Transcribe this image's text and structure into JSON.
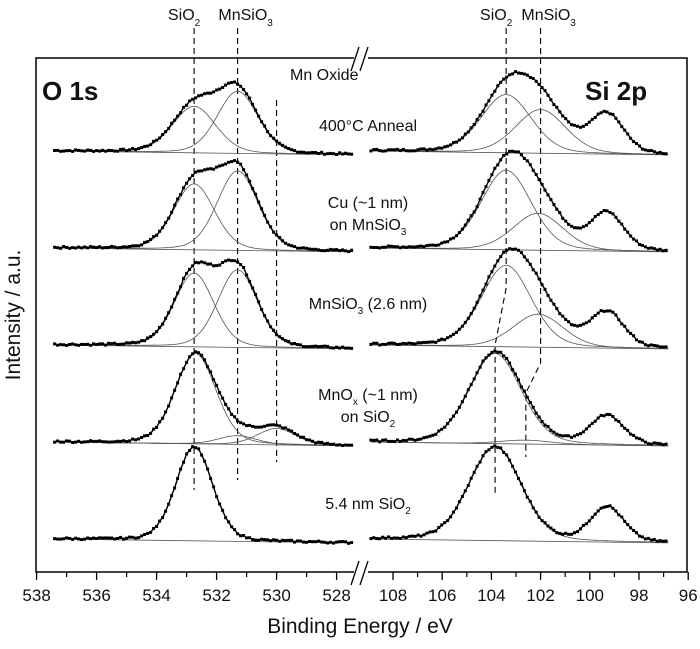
{
  "chart_data": {
    "type": "line",
    "xlabel": "Binding Energy / eV",
    "ylabel": "Intensity / a.u.",
    "ylim": [
      0,
      5.3
    ],
    "panels": [
      {
        "name": "O 1s",
        "xlim": [
          538,
          527.1
        ],
        "ticks": [
          "538",
          "536",
          "534",
          "532",
          "530",
          "528"
        ],
        "tick_values": [
          538,
          536,
          534,
          532,
          530,
          528
        ]
      },
      {
        "name": "Si 2p",
        "xlim": [
          109.3,
          96
        ],
        "ticks": [
          "108",
          "106",
          "104",
          "102",
          "100",
          "98",
          "96"
        ],
        "tick_values": [
          108,
          106,
          104,
          102,
          100,
          98,
          96
        ]
      }
    ],
    "top_labels": [
      {
        "text": "SiO",
        "sub": "2",
        "panel": 0,
        "energy": 532.75
      },
      {
        "text": "MnSiO",
        "sub": "3",
        "panel": 0,
        "energy": 531.3
      },
      {
        "text": "SiO",
        "sub": "2",
        "panel": 1,
        "energy": 103.4
      },
      {
        "text": "MnSiO",
        "sub": "3",
        "panel": 1,
        "energy": 102.0
      }
    ],
    "mn_oxide_label": "Mn Oxide",
    "reference_lines": {
      "O1s": [
        532.75,
        531.3,
        530.0
      ],
      "Si2p_upper": [
        103.4,
        102.0
      ],
      "Si2p_lower": [
        103.85,
        102.6
      ]
    },
    "samples": [
      {
        "label_lines": [
          [
            {
              "text": "400°C Anneal"
            }
          ]
        ],
        "offset": 4.3,
        "O1s": [
          {
            "species": "SiO2",
            "center": 532.75,
            "amp": 0.48,
            "fwhm": 1.7
          },
          {
            "species": "MnSiO3",
            "center": 531.3,
            "amp": 0.64,
            "fwhm": 1.6
          }
        ],
        "Si2p": [
          {
            "species": "SiO2",
            "center": 103.4,
            "amp": 0.6,
            "fwhm": 2.4
          },
          {
            "species": "MnSiO3",
            "center": 102.0,
            "amp": 0.45,
            "fwhm": 2.4
          },
          {
            "species": "Si",
            "center": 99.3,
            "amp": 0.4,
            "fwhm": 1.6
          }
        ]
      },
      {
        "label_lines": [
          [
            {
              "text": "Cu (~1  nm)"
            }
          ],
          [
            {
              "text": "on MnSiO"
            },
            {
              "sub": "3"
            }
          ]
        ],
        "offset": 3.3,
        "O1s": [
          {
            "species": "SiO2",
            "center": 532.75,
            "amp": 0.68,
            "fwhm": 1.6
          },
          {
            "species": "MnSiO3",
            "center": 531.3,
            "amp": 0.82,
            "fwhm": 1.6
          }
        ],
        "Si2p": [
          {
            "species": "SiO2",
            "center": 103.4,
            "amp": 0.82,
            "fwhm": 2.4
          },
          {
            "species": "MnSiO3",
            "center": 102.1,
            "amp": 0.38,
            "fwhm": 2.4
          },
          {
            "species": "Si",
            "center": 99.3,
            "amp": 0.38,
            "fwhm": 1.6
          }
        ]
      },
      {
        "label_lines": [
          [
            {
              "text": "MnSiO"
            },
            {
              "sub": "3"
            },
            {
              "text": " (2.6 nm)"
            }
          ]
        ],
        "offset": 2.3,
        "O1s": [
          {
            "species": "SiO2",
            "center": 532.75,
            "amp": 0.76,
            "fwhm": 1.55
          },
          {
            "species": "MnSiO3",
            "center": 531.3,
            "amp": 0.8,
            "fwhm": 1.55
          }
        ],
        "Si2p": [
          {
            "species": "SiO2",
            "center": 103.4,
            "amp": 0.84,
            "fwhm": 2.4
          },
          {
            "species": "MnSiO3",
            "center": 102.1,
            "amp": 0.34,
            "fwhm": 2.4
          },
          {
            "species": "Si",
            "center": 99.3,
            "amp": 0.36,
            "fwhm": 1.6
          }
        ]
      },
      {
        "label_lines": [
          [
            {
              "text": "MnO"
            },
            {
              "sub": "x"
            },
            {
              "text": " (~1 nm)"
            }
          ],
          [
            {
              "text": "on SiO"
            },
            {
              "sub": "2"
            }
          ]
        ],
        "offset": 1.3,
        "O1s": [
          {
            "species": "SiO2",
            "center": 532.7,
            "amp": 0.93,
            "fwhm": 1.6
          },
          {
            "species": "MnSiO3",
            "center": 531.3,
            "amp": 0.09,
            "fwhm": 1.5
          },
          {
            "species": "Mn Oxide",
            "center": 530.0,
            "amp": 0.17,
            "fwhm": 1.5
          }
        ],
        "Si2p": [
          {
            "species": "SiO2",
            "center": 103.85,
            "amp": 0.93,
            "fwhm": 2.5
          },
          {
            "species": "MnSiO3",
            "center": 102.6,
            "amp": 0.04,
            "fwhm": 2.4
          },
          {
            "species": "Si",
            "center": 99.3,
            "amp": 0.3,
            "fwhm": 1.6
          }
        ]
      },
      {
        "label_lines": [
          [
            {
              "text": "5.4 nm SiO"
            },
            {
              "sub": "2"
            }
          ]
        ],
        "offset": 0.3,
        "O1s": [
          {
            "species": "SiO2",
            "center": 532.75,
            "amp": 0.97,
            "fwhm": 1.45
          }
        ],
        "Si2p": [
          {
            "species": "SiO2",
            "center": 103.85,
            "amp": 0.97,
            "fwhm": 2.5
          },
          {
            "species": "Si",
            "center": 99.3,
            "amp": 0.36,
            "fwhm": 1.6
          }
        ]
      }
    ],
    "grid": false,
    "legend": "none",
    "colors": {
      "data": "#000000",
      "fit": "#555555"
    }
  }
}
